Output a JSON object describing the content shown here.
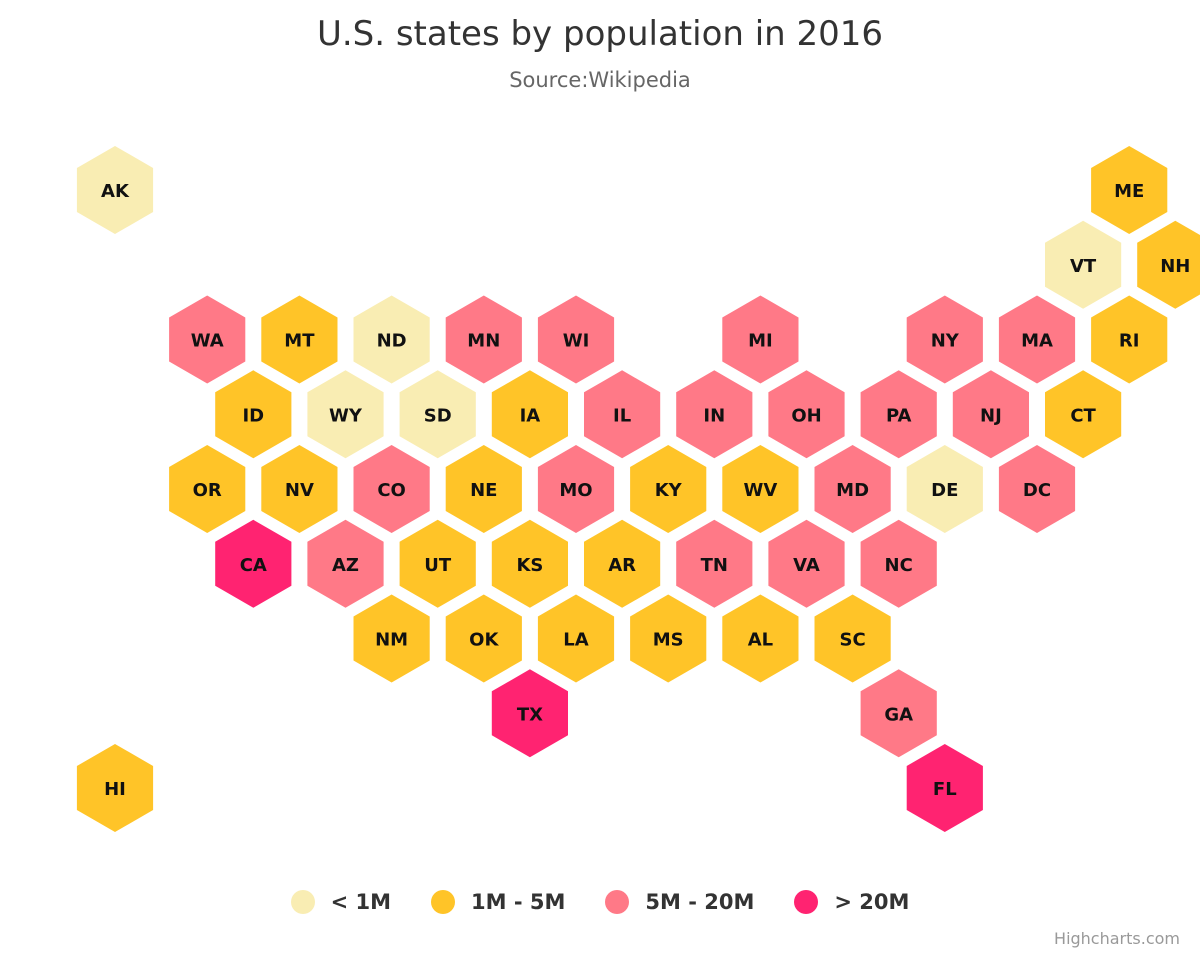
{
  "chart_data": {
    "type": "tilemap",
    "title": "U.S. states by population in 2016",
    "subtitle": "Source:Wikipedia",
    "data_classes": [
      {
        "name": "< 1M",
        "color": "#F9EDB3"
      },
      {
        "name": "1M - 5M",
        "color": "#FFC428"
      },
      {
        "name": "5M - 20M",
        "color": "#FF7987"
      },
      {
        "name": "> 20M",
        "color": "#FF2371"
      }
    ],
    "tiles": [
      {
        "code": "AK",
        "row": 0,
        "col": 0,
        "class": 0
      },
      {
        "code": "ME",
        "row": 0,
        "col": 11,
        "class": 1
      },
      {
        "code": "VT",
        "row": 1,
        "col": 10,
        "class": 0
      },
      {
        "code": "NH",
        "row": 1,
        "col": 11,
        "class": 1
      },
      {
        "code": "WA",
        "row": 2,
        "col": 1,
        "class": 2
      },
      {
        "code": "MT",
        "row": 2,
        "col": 2,
        "class": 1
      },
      {
        "code": "ND",
        "row": 2,
        "col": 3,
        "class": 0
      },
      {
        "code": "MN",
        "row": 2,
        "col": 4,
        "class": 2
      },
      {
        "code": "WI",
        "row": 2,
        "col": 5,
        "class": 2
      },
      {
        "code": "MI",
        "row": 2,
        "col": 7,
        "class": 2
      },
      {
        "code": "NY",
        "row": 2,
        "col": 9,
        "class": 2
      },
      {
        "code": "MA",
        "row": 2,
        "col": 10,
        "class": 2
      },
      {
        "code": "RI",
        "row": 2,
        "col": 11,
        "class": 1
      },
      {
        "code": "ID",
        "row": 3,
        "col": 1,
        "class": 1
      },
      {
        "code": "WY",
        "row": 3,
        "col": 2,
        "class": 0
      },
      {
        "code": "SD",
        "row": 3,
        "col": 3,
        "class": 0
      },
      {
        "code": "IA",
        "row": 3,
        "col": 4,
        "class": 1
      },
      {
        "code": "IL",
        "row": 3,
        "col": 5,
        "class": 2
      },
      {
        "code": "IN",
        "row": 3,
        "col": 6,
        "class": 2
      },
      {
        "code": "OH",
        "row": 3,
        "col": 7,
        "class": 2
      },
      {
        "code": "PA",
        "row": 3,
        "col": 8,
        "class": 2
      },
      {
        "code": "NJ",
        "row": 3,
        "col": 9,
        "class": 2
      },
      {
        "code": "CT",
        "row": 3,
        "col": 10,
        "class": 1
      },
      {
        "code": "OR",
        "row": 4,
        "col": 1,
        "class": 1
      },
      {
        "code": "NV",
        "row": 4,
        "col": 2,
        "class": 1
      },
      {
        "code": "CO",
        "row": 4,
        "col": 3,
        "class": 2
      },
      {
        "code": "NE",
        "row": 4,
        "col": 4,
        "class": 1
      },
      {
        "code": "MO",
        "row": 4,
        "col": 5,
        "class": 2
      },
      {
        "code": "KY",
        "row": 4,
        "col": 6,
        "class": 1
      },
      {
        "code": "WV",
        "row": 4,
        "col": 7,
        "class": 1
      },
      {
        "code": "MD",
        "row": 4,
        "col": 8,
        "class": 2
      },
      {
        "code": "DE",
        "row": 4,
        "col": 9,
        "class": 0
      },
      {
        "code": "DC",
        "row": 4,
        "col": 10,
        "class": 2
      },
      {
        "code": "CA",
        "row": 5,
        "col": 1,
        "class": 3
      },
      {
        "code": "AZ",
        "row": 5,
        "col": 2,
        "class": 2
      },
      {
        "code": "UT",
        "row": 5,
        "col": 3,
        "class": 1
      },
      {
        "code": "KS",
        "row": 5,
        "col": 4,
        "class": 1
      },
      {
        "code": "AR",
        "row": 5,
        "col": 5,
        "class": 1
      },
      {
        "code": "TN",
        "row": 5,
        "col": 6,
        "class": 2
      },
      {
        "code": "VA",
        "row": 5,
        "col": 7,
        "class": 2
      },
      {
        "code": "NC",
        "row": 5,
        "col": 8,
        "class": 2
      },
      {
        "code": "NM",
        "row": 6,
        "col": 3,
        "class": 1
      },
      {
        "code": "OK",
        "row": 6,
        "col": 4,
        "class": 1
      },
      {
        "code": "LA",
        "row": 6,
        "col": 5,
        "class": 1
      },
      {
        "code": "MS",
        "row": 6,
        "col": 6,
        "class": 1
      },
      {
        "code": "AL",
        "row": 6,
        "col": 7,
        "class": 1
      },
      {
        "code": "SC",
        "row": 6,
        "col": 8,
        "class": 1
      },
      {
        "code": "TX",
        "row": 7,
        "col": 4,
        "class": 3
      },
      {
        "code": "GA",
        "row": 7,
        "col": 8,
        "class": 2
      },
      {
        "code": "HI",
        "row": 8,
        "col": 0,
        "class": 1
      },
      {
        "code": "FL",
        "row": 8,
        "col": 9,
        "class": 3
      }
    ]
  },
  "credits": "Highcharts.com"
}
